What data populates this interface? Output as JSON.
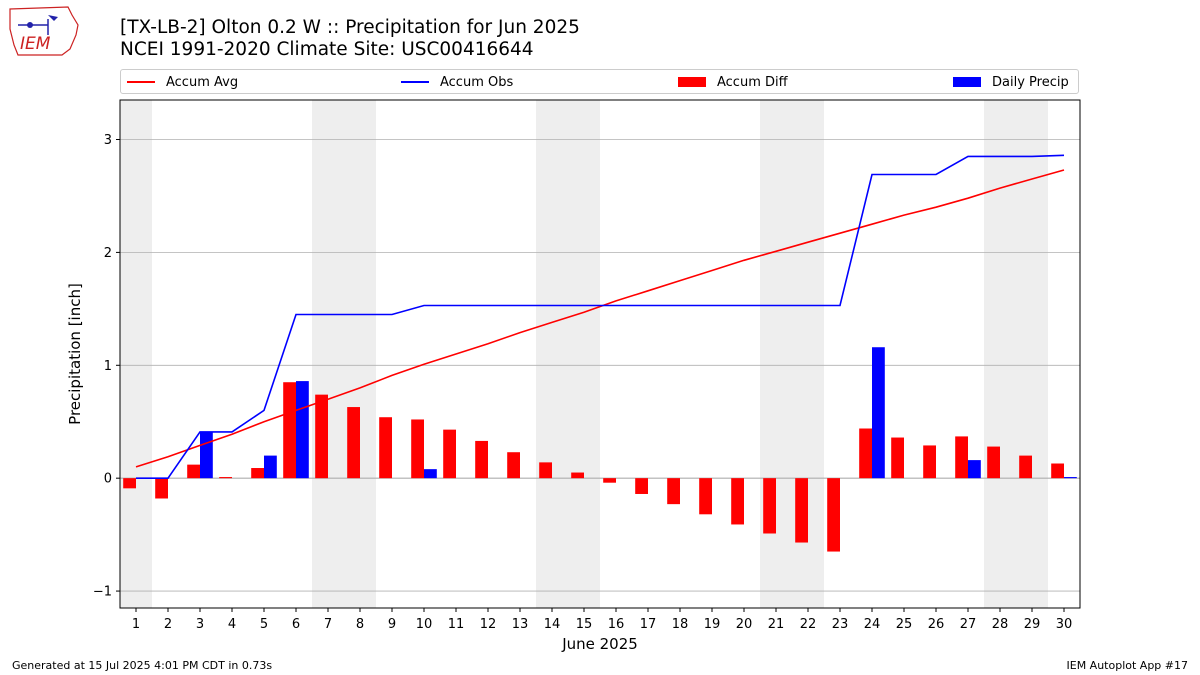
{
  "header": {
    "title_line1": "[TX-LB-2] Olton 0.2 W :: Precipitation for Jun 2025",
    "title_line2": "NCEI 1991-2020 Climate Site: USC00416644",
    "logo_text": "IEM"
  },
  "footer": {
    "generated": "Generated at 15 Jul 2025 4:01 PM CDT in 0.73s",
    "app": "IEM Autoplot App #17"
  },
  "colors": {
    "avg": "#ff0000",
    "obs": "#0000ff",
    "diff": "#ff0000",
    "daily": "#0000ff",
    "weekend": "#eeeeee",
    "grid": "#b0b0b0"
  },
  "chart_data": {
    "type": "bar",
    "xlabel": "June 2025",
    "ylabel": "Precipitation [inch]",
    "ylim": [
      -1.15,
      3.35
    ],
    "xlim": [
      0.5,
      30.5
    ],
    "grid": "horizontal",
    "legend_position": "top",
    "yticks": [
      -1,
      0,
      1,
      2,
      3
    ],
    "x": [
      1,
      2,
      3,
      4,
      5,
      6,
      7,
      8,
      9,
      10,
      11,
      12,
      13,
      14,
      15,
      16,
      17,
      18,
      19,
      20,
      21,
      22,
      23,
      24,
      25,
      26,
      27,
      28,
      29,
      30
    ],
    "weekend_days": [
      1,
      7,
      8,
      14,
      15,
      21,
      22,
      28,
      29
    ],
    "series": [
      {
        "name": "Accum Avg",
        "kind": "line",
        "values": [
          0.1,
          0.19,
          0.29,
          0.39,
          0.5,
          0.6,
          0.7,
          0.8,
          0.91,
          1.01,
          1.1,
          1.19,
          1.29,
          1.38,
          1.47,
          1.57,
          1.66,
          1.75,
          1.84,
          1.93,
          2.01,
          2.09,
          2.17,
          2.25,
          2.33,
          2.4,
          2.48,
          2.57,
          2.65,
          2.73
        ]
      },
      {
        "name": "Accum Obs",
        "kind": "line",
        "values": [
          0,
          0,
          0.41,
          0.41,
          0.6,
          1.45,
          1.45,
          1.45,
          1.45,
          1.53,
          1.53,
          1.53,
          1.53,
          1.53,
          1.53,
          1.53,
          1.53,
          1.53,
          1.53,
          1.53,
          1.53,
          1.53,
          1.53,
          2.69,
          2.69,
          2.69,
          2.85,
          2.85,
          2.85,
          2.86
        ]
      },
      {
        "name": "Accum Diff",
        "kind": "bar",
        "values": [
          -0.09,
          -0.18,
          0.12,
          0.01,
          0.09,
          0.85,
          0.74,
          0.63,
          0.54,
          0.52,
          0.43,
          0.33,
          0.23,
          0.14,
          0.05,
          -0.04,
          -0.14,
          -0.23,
          -0.32,
          -0.41,
          -0.49,
          -0.57,
          -0.65,
          0.44,
          0.36,
          0.29,
          0.37,
          0.28,
          0.2,
          0.13
        ]
      },
      {
        "name": "Daily Precip",
        "kind": "bar",
        "values": [
          0,
          0,
          0.41,
          0,
          0.2,
          0.86,
          0,
          0,
          0,
          0.08,
          0,
          0,
          0,
          0,
          0,
          0,
          0,
          0,
          0,
          0,
          0,
          0,
          0,
          1.16,
          0,
          0,
          0.16,
          0,
          0,
          0.01
        ]
      }
    ]
  }
}
